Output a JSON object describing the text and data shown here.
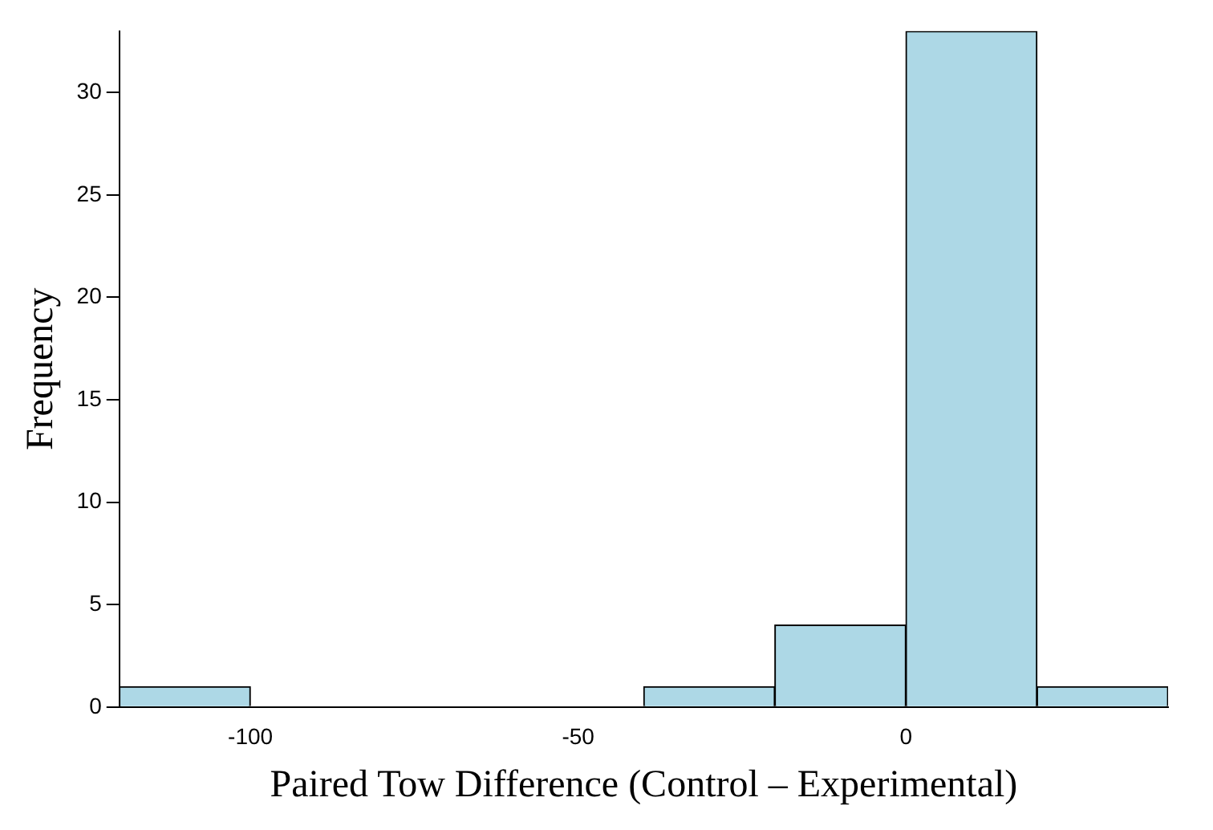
{
  "chart_data": {
    "type": "histogram",
    "xlabel": "Paired Tow Difference (Control – Experimental)",
    "ylabel": "Frequency",
    "bins": [
      -120,
      -100,
      -80,
      -60,
      -40,
      -20,
      0,
      20,
      40
    ],
    "values": [
      1,
      0,
      0,
      0,
      1,
      4,
      33,
      1
    ],
    "color": "#add8e6",
    "xlim": [
      -120,
      40
    ],
    "xticks": [
      -100,
      -50,
      0
    ],
    "ylim": [
      0,
      33
    ],
    "yticks": [
      0,
      5,
      10,
      15,
      20,
      25,
      30
    ],
    "grid": false,
    "legend": false
  }
}
